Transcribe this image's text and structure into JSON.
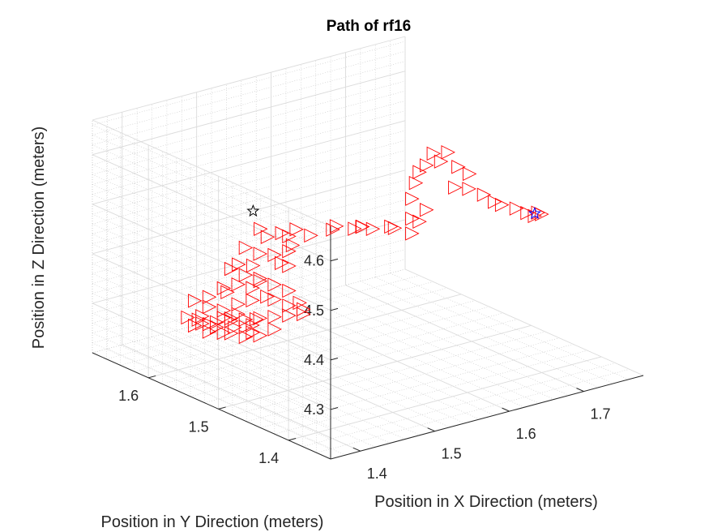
{
  "chart_data": {
    "type": "scatter",
    "title": "Path of rf16",
    "xlabel": "Position in X Direction (meters)",
    "ylabel": "Position in Y Direction (meters)",
    "zlabel": "Position in Z Direction (meters)",
    "xlim": [
      1.36,
      1.78
    ],
    "ylim": [
      1.34,
      1.68
    ],
    "zlim": [
      4.2,
      4.67
    ],
    "x_ticks": [
      "1.4",
      "1.5",
      "1.6",
      "1.7"
    ],
    "y_ticks": [
      "1.4",
      "1.5",
      "1.6"
    ],
    "z_ticks": [
      "4.3",
      "4.4",
      "4.5",
      "4.6"
    ],
    "grid": true,
    "series": [
      {
        "marker": "triangle-right",
        "color": "#ff0000",
        "points": [
          [
            1.57,
            1.56,
            4.44
          ],
          [
            1.575,
            1.56,
            4.445
          ],
          [
            1.59,
            1.55,
            4.44
          ],
          [
            1.605,
            1.54,
            4.44
          ],
          [
            1.62,
            1.53,
            4.445
          ],
          [
            1.625,
            1.53,
            4.44
          ],
          [
            1.61,
            1.56,
            4.43
          ],
          [
            1.6,
            1.55,
            4.44
          ],
          [
            1.62,
            1.5,
            4.45
          ],
          [
            1.63,
            1.5,
            4.47
          ],
          [
            1.62,
            1.5,
            4.48
          ],
          [
            1.63,
            1.49,
            4.5
          ],
          [
            1.62,
            1.5,
            4.52
          ],
          [
            1.625,
            1.5,
            4.55
          ],
          [
            1.63,
            1.5,
            4.57
          ],
          [
            1.63,
            1.49,
            4.59
          ],
          [
            1.64,
            1.48,
            4.6
          ],
          [
            1.63,
            1.48,
            4.62
          ],
          [
            1.64,
            1.47,
            4.625
          ],
          [
            1.635,
            1.45,
            4.61
          ],
          [
            1.65,
            1.45,
            4.59
          ],
          [
            1.64,
            1.44,
            4.57
          ],
          [
            1.64,
            1.46,
            4.56
          ],
          [
            1.66,
            1.44,
            4.55
          ],
          [
            1.665,
            1.43,
            4.54
          ],
          [
            1.67,
            1.425,
            4.535
          ],
          [
            1.68,
            1.415,
            4.53
          ],
          [
            1.69,
            1.41,
            4.52
          ],
          [
            1.695,
            1.4,
            4.525
          ],
          [
            1.7,
            1.4,
            4.52
          ],
          [
            1.7,
            1.41,
            4.51
          ],
          [
            1.54,
            1.58,
            4.44
          ],
          [
            1.53,
            1.58,
            4.43
          ],
          [
            1.52,
            1.6,
            4.42
          ],
          [
            1.52,
            1.61,
            4.43
          ],
          [
            1.53,
            1.59,
            4.43
          ],
          [
            1.55,
            1.57,
            4.43
          ],
          [
            1.535,
            1.58,
            4.41
          ],
          [
            1.53,
            1.58,
            4.4
          ],
          [
            1.52,
            1.59,
            4.39
          ],
          [
            1.5,
            1.61,
            4.4
          ],
          [
            1.51,
            1.6,
            4.39
          ],
          [
            1.52,
            1.58,
            4.38
          ],
          [
            1.53,
            1.58,
            4.37
          ],
          [
            1.51,
            1.61,
            4.36
          ],
          [
            1.5,
            1.62,
            4.36
          ],
          [
            1.49,
            1.62,
            4.355
          ],
          [
            1.5,
            1.61,
            4.345
          ],
          [
            1.51,
            1.6,
            4.335
          ],
          [
            1.52,
            1.59,
            4.33
          ],
          [
            1.53,
            1.58,
            4.32
          ],
          [
            1.535,
            1.57,
            4.3
          ],
          [
            1.54,
            1.57,
            4.285
          ],
          [
            1.53,
            1.58,
            4.27
          ],
          [
            1.52,
            1.59,
            4.265
          ],
          [
            1.51,
            1.6,
            4.26
          ],
          [
            1.5,
            1.61,
            4.255
          ],
          [
            1.49,
            1.62,
            4.25
          ],
          [
            1.48,
            1.63,
            4.245
          ],
          [
            1.475,
            1.635,
            4.24
          ],
          [
            1.47,
            1.63,
            4.23
          ],
          [
            1.46,
            1.64,
            4.24
          ],
          [
            1.465,
            1.64,
            4.25
          ],
          [
            1.48,
            1.62,
            4.23
          ],
          [
            1.49,
            1.62,
            4.225
          ],
          [
            1.5,
            1.61,
            4.22
          ],
          [
            1.51,
            1.6,
            4.225
          ],
          [
            1.5,
            1.6,
            4.235
          ],
          [
            1.49,
            1.615,
            4.24
          ],
          [
            1.5,
            1.6,
            4.25
          ],
          [
            1.505,
            1.6,
            4.26
          ],
          [
            1.49,
            1.61,
            4.27
          ],
          [
            1.48,
            1.62,
            4.275
          ],
          [
            1.49,
            1.61,
            4.29
          ],
          [
            1.5,
            1.6,
            4.3
          ],
          [
            1.51,
            1.59,
            4.31
          ],
          [
            1.5,
            1.6,
            4.325
          ],
          [
            1.49,
            1.61,
            4.33
          ],
          [
            1.48,
            1.62,
            4.32
          ],
          [
            1.485,
            1.62,
            4.31
          ],
          [
            1.47,
            1.63,
            4.3
          ],
          [
            1.46,
            1.64,
            4.29
          ],
          [
            1.47,
            1.63,
            4.28
          ],
          [
            1.48,
            1.62,
            4.26
          ],
          [
            1.47,
            1.64,
            4.255
          ],
          [
            1.46,
            1.65,
            4.25
          ],
          [
            1.47,
            1.64,
            4.24
          ],
          [
            1.48,
            1.63,
            4.235
          ],
          [
            1.49,
            1.62,
            4.255
          ],
          [
            1.5,
            1.61,
            4.24
          ],
          [
            1.52,
            1.59,
            4.24
          ],
          [
            1.54,
            1.57,
            4.275
          ],
          [
            1.53,
            1.58,
            4.29
          ],
          [
            1.52,
            1.59,
            4.3
          ],
          [
            1.51,
            1.6,
            4.34
          ]
        ]
      },
      {
        "marker": "pentagram",
        "color": "#000000",
        "points": [
          [
            1.51,
            1.61,
            4.47
          ]
        ]
      },
      {
        "marker": "pentagram",
        "color": "#0000ff",
        "points": [
          [
            1.7,
            1.41,
            4.515
          ]
        ]
      }
    ]
  }
}
